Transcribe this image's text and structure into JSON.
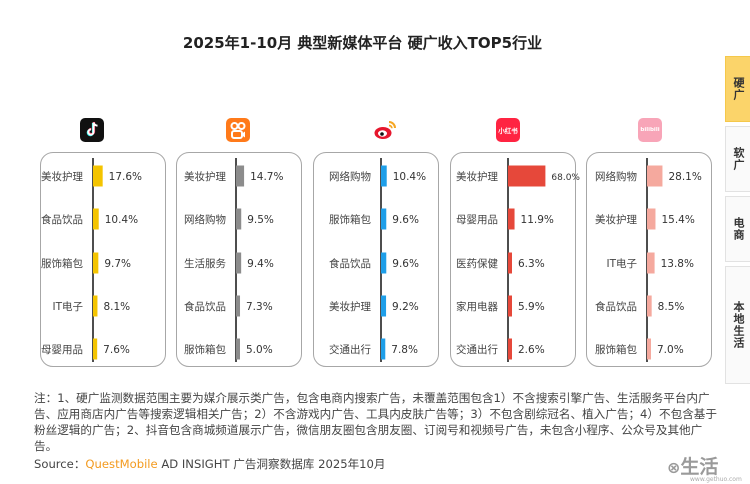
{
  "title": "2025年1-10月 典型新媒体平台 硬广收入TOP5行业",
  "tabs": [
    {
      "label": "硬广",
      "active": true
    },
    {
      "label": "软广",
      "active": false
    },
    {
      "label": "电商",
      "active": false
    },
    {
      "label": "本地生活",
      "active": false
    }
  ],
  "platforms": [
    {
      "icon": "douyin-logo-icon",
      "color": "#f4c400"
    },
    {
      "icon": "kuaishou-logo-icon",
      "color": "#8c8c8c"
    },
    {
      "icon": "weibo-logo-icon",
      "color": "#1e9ee8"
    },
    {
      "icon": "xiaohongshu-logo-icon",
      "color": "#e6483a",
      "logo_text": "小红书"
    },
    {
      "icon": "bilibili-logo-icon",
      "color": "#f5a99e",
      "logo_text": "bilibili"
    }
  ],
  "chart_data": [
    {
      "type": "bar",
      "orientation": "horizontal",
      "unit": "%",
      "categories": [
        "美妆护理",
        "食品饮品",
        "服饰箱包",
        "IT电子",
        "母婴用品"
      ],
      "values": [
        17.6,
        10.4,
        9.7,
        8.1,
        7.6
      ],
      "labels": [
        "17.6%",
        "10.4%",
        "9.7%",
        "8.1%",
        "7.6%"
      ],
      "xlim": [
        0,
        70
      ]
    },
    {
      "type": "bar",
      "orientation": "horizontal",
      "unit": "%",
      "categories": [
        "美妆护理",
        "网络购物",
        "生活服务",
        "食品饮品",
        "服饰箱包"
      ],
      "values": [
        14.7,
        9.5,
        9.4,
        7.3,
        5.0
      ],
      "labels": [
        "14.7%",
        "9.5%",
        "9.4%",
        "7.3%",
        "5.0%"
      ],
      "xlim": [
        0,
        70
      ]
    },
    {
      "type": "bar",
      "orientation": "horizontal",
      "unit": "%",
      "categories": [
        "网络购物",
        "服饰箱包",
        "食品饮品",
        "美妆护理",
        "交通出行"
      ],
      "values": [
        10.4,
        9.6,
        9.6,
        9.2,
        7.8
      ],
      "labels": [
        "10.4%",
        "9.6%",
        "9.6%",
        "9.2%",
        "7.8%"
      ],
      "xlim": [
        0,
        70
      ]
    },
    {
      "type": "bar",
      "orientation": "horizontal",
      "unit": "%",
      "categories": [
        "美妆护理",
        "母婴用品",
        "医药保健",
        "家用电器",
        "交通出行"
      ],
      "values": [
        68.0,
        11.9,
        6.3,
        5.9,
        2.6
      ],
      "labels": [
        "68.0%",
        "11.9%",
        "6.3%",
        "5.9%",
        "2.6%"
      ],
      "xlim": [
        0,
        70
      ]
    },
    {
      "type": "bar",
      "orientation": "horizontal",
      "unit": "%",
      "categories": [
        "网络购物",
        "美妆护理",
        "IT电子",
        "食品饮品",
        "服饰箱包"
      ],
      "values": [
        28.1,
        15.4,
        13.8,
        8.5,
        7.0
      ],
      "labels": [
        "28.1%",
        "15.4%",
        "13.8%",
        "8.5%",
        "7.0%"
      ],
      "xlim": [
        0,
        70
      ]
    }
  ],
  "note": "注：1、硬广监测数据范围主要为媒介展示类广告，包含电商内搜索广告，未覆盖范围包含1）不含搜索引擎广告、生活服务平台内广告、应用商店内广告等搜索逻辑相关广告；2）不含游戏内广告、工具内皮肤广告等；3）不包含剧综冠名、植入广告；4）不包含基于粉丝逻辑的广告；2、抖音包含商城频道展示广告，微信朋友圈包含朋友圈、订阅号和视频号广告，未包含小程序、公众号及其他广告。",
  "source": {
    "prefix": "Source：",
    "brand": "QuestMobile",
    "suffix": " AD INSIGHT 广告洞察数据库 2025年10月"
  },
  "watermark": {
    "text": "生活",
    "url": "www.gethuo.com"
  }
}
